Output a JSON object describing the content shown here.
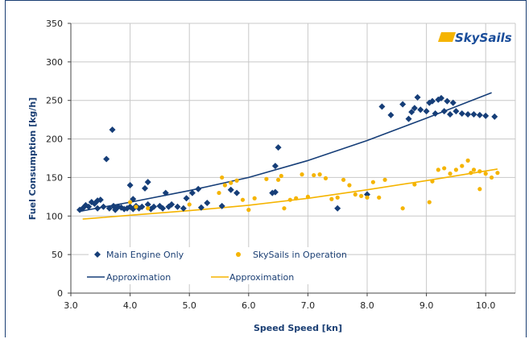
{
  "logo": {
    "text": "SkySails",
    "mark_color": "#f5b400",
    "text_color": "#1a4d9a"
  },
  "colors": {
    "navy": "#163e78",
    "gold": "#f5b400",
    "grid": "#c8c8c8",
    "frame": "#1a3e73"
  },
  "chart_data": {
    "type": "scatter",
    "title": "",
    "xlabel": "Speed Speed [kn]",
    "ylabel": "Fuel Consumption [kg/h]",
    "xlim": [
      3.0,
      10.5
    ],
    "ylim": [
      0,
      350
    ],
    "x_ticks": [
      "3.0",
      "4.0",
      "5.0",
      "6.0",
      "7.0",
      "8.0",
      "9.0",
      "10.0"
    ],
    "y_ticks": [
      "0",
      "50",
      "100",
      "150",
      "200",
      "250",
      "300",
      "350"
    ],
    "grid": true,
    "legend_position": "bottom-left",
    "legend": {
      "main_engine": "Main Engine Only",
      "skysails": "SkySails in Operation",
      "approx_main": "Approximation",
      "approx_skysails": "Approximation"
    },
    "series": [
      {
        "name": "Main Engine Only",
        "marker": "diamond",
        "color": "#163e78",
        "points": [
          [
            3.15,
            108
          ],
          [
            3.2,
            110
          ],
          [
            3.25,
            114
          ],
          [
            3.3,
            112
          ],
          [
            3.35,
            118
          ],
          [
            3.4,
            116
          ],
          [
            3.45,
            120
          ],
          [
            3.5,
            121
          ],
          [
            3.45,
            110
          ],
          [
            3.55,
            112
          ],
          [
            3.6,
            174
          ],
          [
            3.65,
            110
          ],
          [
            3.7,
            212
          ],
          [
            3.72,
            113
          ],
          [
            3.75,
            108
          ],
          [
            3.8,
            112
          ],
          [
            3.85,
            111
          ],
          [
            3.9,
            109
          ],
          [
            3.95,
            110
          ],
          [
            4.0,
            140
          ],
          [
            4.0,
            112
          ],
          [
            4.05,
            122
          ],
          [
            4.05,
            109
          ],
          [
            4.1,
            113
          ],
          [
            4.15,
            110
          ],
          [
            4.2,
            112
          ],
          [
            4.25,
            136
          ],
          [
            4.3,
            144
          ],
          [
            4.3,
            115
          ],
          [
            4.35,
            109
          ],
          [
            4.4,
            112
          ],
          [
            4.5,
            113
          ],
          [
            4.55,
            110
          ],
          [
            4.6,
            130
          ],
          [
            4.65,
            112
          ],
          [
            4.7,
            115
          ],
          [
            4.8,
            112
          ],
          [
            4.9,
            110
          ],
          [
            4.95,
            123
          ],
          [
            5.05,
            130
          ],
          [
            5.15,
            135
          ],
          [
            5.2,
            111
          ],
          [
            5.3,
            117
          ],
          [
            5.55,
            113
          ],
          [
            5.7,
            134
          ],
          [
            5.8,
            130
          ],
          [
            6.4,
            130
          ],
          [
            6.45,
            131
          ],
          [
            6.45,
            165
          ],
          [
            6.5,
            189
          ],
          [
            7.5,
            110
          ],
          [
            8.0,
            128
          ],
          [
            8.25,
            242
          ],
          [
            8.4,
            231
          ],
          [
            8.6,
            245
          ],
          [
            8.7,
            226
          ],
          [
            8.75,
            235
          ],
          [
            8.8,
            240
          ],
          [
            8.85,
            254
          ],
          [
            8.9,
            238
          ],
          [
            9.0,
            236
          ],
          [
            9.05,
            247
          ],
          [
            9.1,
            249
          ],
          [
            9.15,
            233
          ],
          [
            9.2,
            251
          ],
          [
            9.25,
            253
          ],
          [
            9.3,
            236
          ],
          [
            9.35,
            249
          ],
          [
            9.4,
            232
          ],
          [
            9.45,
            247
          ],
          [
            9.5,
            236
          ],
          [
            9.6,
            233
          ],
          [
            9.7,
            232
          ],
          [
            9.8,
            232
          ],
          [
            9.9,
            231
          ],
          [
            10.0,
            230
          ],
          [
            10.15,
            229
          ]
        ]
      },
      {
        "name": "SkySails in Operation",
        "marker": "circle",
        "color": "#f5b400",
        "points": [
          [
            4.0,
            118
          ],
          [
            4.1,
            112
          ],
          [
            4.3,
            110
          ],
          [
            5.0,
            115
          ],
          [
            5.5,
            130
          ],
          [
            5.55,
            150
          ],
          [
            5.6,
            140
          ],
          [
            5.7,
            143
          ],
          [
            5.8,
            146
          ],
          [
            5.9,
            121
          ],
          [
            6.0,
            108
          ],
          [
            6.1,
            123
          ],
          [
            6.3,
            148
          ],
          [
            6.5,
            147
          ],
          [
            6.55,
            152
          ],
          [
            6.6,
            110
          ],
          [
            6.7,
            121
          ],
          [
            6.8,
            123
          ],
          [
            6.9,
            154
          ],
          [
            7.0,
            125
          ],
          [
            7.1,
            153
          ],
          [
            7.2,
            154
          ],
          [
            7.3,
            149
          ],
          [
            7.4,
            122
          ],
          [
            7.5,
            124
          ],
          [
            7.6,
            147
          ],
          [
            7.7,
            140
          ],
          [
            7.8,
            128
          ],
          [
            7.9,
            126
          ],
          [
            8.0,
            124
          ],
          [
            8.1,
            144
          ],
          [
            8.2,
            124
          ],
          [
            8.3,
            147
          ],
          [
            8.6,
            110
          ],
          [
            8.8,
            141
          ],
          [
            9.05,
            118
          ],
          [
            9.1,
            145
          ],
          [
            9.2,
            160
          ],
          [
            9.3,
            162
          ],
          [
            9.4,
            155
          ],
          [
            9.5,
            160
          ],
          [
            9.6,
            165
          ],
          [
            9.7,
            172
          ],
          [
            9.75,
            156
          ],
          [
            9.8,
            160
          ],
          [
            9.9,
            158
          ],
          [
            10.0,
            155
          ],
          [
            10.1,
            150
          ],
          [
            10.2,
            156
          ],
          [
            9.9,
            135
          ]
        ]
      }
    ],
    "approximations": [
      {
        "name": "Approximation",
        "color": "#163e78",
        "x": [
          3.15,
          4.0,
          5.0,
          6.0,
          7.0,
          8.0,
          9.0,
          10.1
        ],
        "y": [
          106,
          118,
          133,
          150,
          172,
          198,
          227,
          260
        ]
      },
      {
        "name": "Approximation",
        "color": "#f5b400",
        "x": [
          3.2,
          4.0,
          5.0,
          6.0,
          7.0,
          8.0,
          9.0,
          10.2
        ],
        "y": [
          96,
          101,
          107,
          114,
          123,
          134,
          146,
          161
        ]
      }
    ]
  }
}
